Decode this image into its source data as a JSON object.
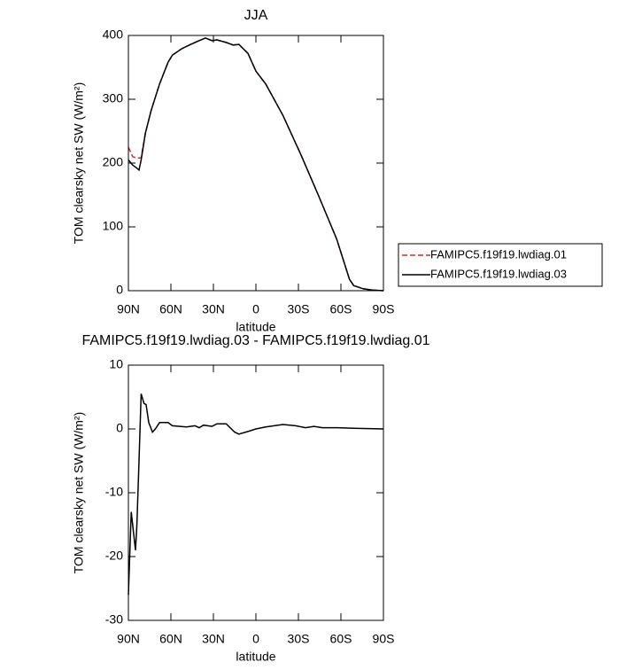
{
  "chart_data": [
    {
      "type": "line",
      "title": "JJA",
      "xlabel": "latitude",
      "ylabel": "TOM clearsky net SW (W/m²)",
      "xlim": [
        90,
        -90
      ],
      "xticks": [
        {
          "value": 90,
          "label": "90N"
        },
        {
          "value": 60,
          "label": "60N"
        },
        {
          "value": 30,
          "label": "30N"
        },
        0,
        {
          "value": -30,
          "label": "30S"
        },
        {
          "value": -60,
          "label": "60S"
        },
        {
          "value": -90,
          "label": "90S"
        }
      ],
      "ylim": [
        0,
        400
      ],
      "yticks": [
        0,
        100,
        200,
        300,
        400
      ],
      "legend": "right",
      "x": [
        90,
        87,
        84,
        82.5,
        81,
        78,
        74,
        71,
        68,
        62,
        59,
        52.5,
        46,
        40,
        35.6,
        31,
        27.5,
        21,
        16,
        12,
        5.6,
        0,
        -6.9,
        -19,
        -32,
        -44,
        -57,
        -63,
        -66,
        -69,
        -75.6,
        -82,
        -90
      ],
      "series": [
        {
          "name": "FAMIPC5.f19f19.lwdiag.01",
          "color": "#d62728",
          "dash": true,
          "values": [
            225,
            210,
            208,
            208,
            208,
            247,
            282,
            303,
            324,
            358,
            369,
            379,
            386,
            392,
            396,
            392,
            393,
            389,
            385,
            386,
            372,
            344,
            324,
            275,
            212,
            150,
            81,
            39,
            18,
            8,
            3,
            1,
            0
          ]
        },
        {
          "name": "FAMIPC5.f19f19.lwdiag.03",
          "color": "#000000",
          "dash": false,
          "values": [
            205,
            197,
            192,
            189,
            205,
            247,
            282,
            303,
            324,
            358,
            369,
            379,
            386,
            392,
            396,
            392,
            393,
            389,
            385,
            386,
            372,
            344,
            324,
            275,
            212,
            150,
            81,
            39,
            18,
            8,
            3,
            1,
            0
          ]
        }
      ]
    },
    {
      "type": "line",
      "title": "FAMIPC5.f19f19.lwdiag.03 - FAMIPC5.f19f19.lwdiag.01",
      "xlabel": "latitude",
      "ylabel": "TOM clearsky net SW (W/m²)",
      "xlim": [
        90,
        -90
      ],
      "xticks": [
        {
          "value": 90,
          "label": "90N"
        },
        {
          "value": 60,
          "label": "60N"
        },
        {
          "value": 30,
          "label": "30N"
        },
        0,
        {
          "value": -30,
          "label": "30S"
        },
        {
          "value": -60,
          "label": "60S"
        },
        {
          "value": -90,
          "label": "90S"
        }
      ],
      "ylim": [
        -30,
        10
      ],
      "yticks": [
        -30,
        -20,
        -10,
        0,
        10
      ],
      "x": [
        90,
        88,
        87,
        85,
        84,
        82.5,
        81,
        79,
        77.5,
        75.6,
        73,
        71,
        68,
        62,
        59,
        49,
        43,
        40,
        37,
        31,
        27.5,
        21,
        15,
        12,
        5.6,
        0,
        -6.9,
        -19,
        -28,
        -35,
        -41,
        -47,
        -57,
        -69,
        -90
      ],
      "series": [
        {
          "color": "#000000",
          "dash": false,
          "values": [
            -26,
            -13,
            -15,
            -19,
            -15,
            -5,
            5.5,
            4,
            3.8,
            1,
            -0.5,
            0,
            1,
            1,
            0.5,
            0.3,
            0.5,
            0.2,
            0.6,
            0.4,
            0.8,
            0.8,
            -0.5,
            -0.8,
            -0.4,
            0,
            0.3,
            0.7,
            0.5,
            0.2,
            0.4,
            0.2,
            0.2,
            0.1,
            0
          ]
        }
      ]
    }
  ]
}
